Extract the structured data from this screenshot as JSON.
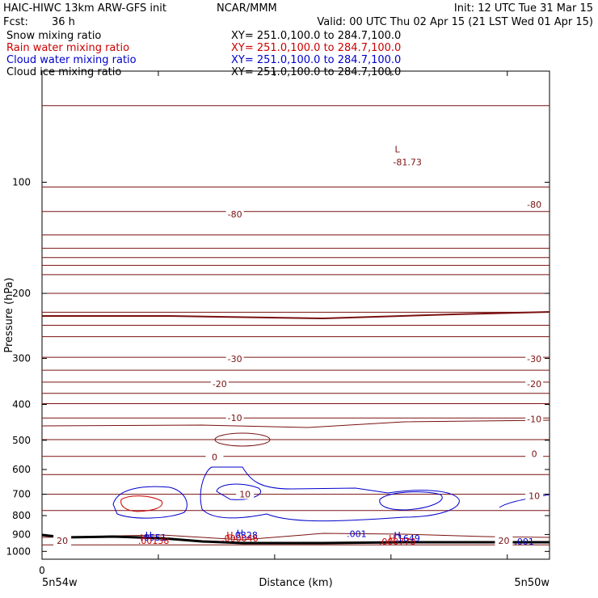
{
  "header": {
    "model": "HAIC-HIWC 13km ARW-GFS init",
    "org": "NCAR/MMM",
    "init": "Init: 12 UTC Tue 31 Mar 15",
    "fcst_label": "Fcst:",
    "fcst_value": "36 h",
    "valid": "Valid: 00 UTC Thu 02 Apr 15 (21 LST Wed 01 Apr 15)"
  },
  "legend": [
    {
      "name": "Snow mixing ratio",
      "xy": "XY= 251.0,100.0 to 284.7,100.0",
      "color": "#000000"
    },
    {
      "name": "Rain water mixing ratio",
      "xy": "XY= 251.0,100.0 to 284.7,100.0",
      "color": "#cc0000"
    },
    {
      "name": "Cloud water mixing ratio",
      "xy": "XY= 251.0,100.0 to 284.7,100.0",
      "color": "#0000cc"
    },
    {
      "name": "Cloud ice mixing ratio",
      "xy": "XY= 251.0,100.0 to 284.7,100.0",
      "color": "#000000"
    }
  ],
  "chart_data": {
    "type": "line",
    "xlabel": "Distance (km)",
    "ylabel": "Pressure (hPa)",
    "x_tick_labels": [
      "0"
    ],
    "x_end_labels": [
      "5n54w",
      "5n50w"
    ],
    "y_ticks": [
      100,
      200,
      300,
      400,
      500,
      600,
      700,
      800,
      900,
      1000
    ],
    "ylim": [
      1050,
      50
    ],
    "y_scale": "log",
    "grid": false,
    "colors": {
      "temperature": "#7a1010",
      "cloud_water": "#0000cc",
      "rain_water": "#cc0000",
      "terrain": "#000000"
    },
    "temperature_contour_labels": [
      {
        "text": "-80",
        "x": 0.38,
        "p": 122
      },
      {
        "text": "-80",
        "x": 0.97,
        "p": 115
      },
      {
        "text": "-30",
        "x": 0.38,
        "p": 301
      },
      {
        "text": "-30",
        "x": 0.97,
        "p": 301
      },
      {
        "text": "-20",
        "x": 0.35,
        "p": 352
      },
      {
        "text": "-20",
        "x": 0.97,
        "p": 352
      },
      {
        "text": "-10",
        "x": 0.38,
        "p": 435
      },
      {
        "text": "-10",
        "x": 0.97,
        "p": 438
      },
      {
        "text": "0",
        "x": 0.34,
        "p": 555
      },
      {
        "text": "0",
        "x": 0.97,
        "p": 544
      },
      {
        "text": "10",
        "x": 0.4,
        "p": 700
      },
      {
        "text": "10",
        "x": 0.97,
        "p": 706
      },
      {
        "text": "20",
        "x": 0.04,
        "p": 935
      },
      {
        "text": "20",
        "x": 0.91,
        "p": 935
      }
    ],
    "temperature_isobars": [
      62,
      103,
      120,
      139,
      151,
      160,
      168,
      178,
      200,
      225,
      244,
      262,
      298,
      323,
      348,
      373,
      398,
      435,
      498,
      553,
      619,
      700,
      775,
      960
    ],
    "extreme_labels": [
      {
        "text": "L",
        "x": 0.7,
        "p": 83,
        "color": "#7a1010"
      },
      {
        "text": "-81.73",
        "x": 0.72,
        "p": 90,
        "color": "#7a1010"
      },
      {
        "text": "H",
        "x": 0.21,
        "p": 920,
        "color": "#0000cc"
      },
      {
        "text": "H",
        "x": 0.2,
        "p": 935,
        "color": "#cc0000"
      },
      {
        "text": ".0551",
        "x": 0.22,
        "p": 935,
        "color": "#0000cc"
      },
      {
        "text": ".00138",
        "x": 0.22,
        "p": 955,
        "color": "#cc0000"
      },
      {
        "text": "H",
        "x": 0.39,
        "p": 910,
        "color": "#0000cc"
      },
      {
        "text": "H",
        "x": 0.37,
        "p": 922,
        "color": "#cc0000"
      },
      {
        "text": ".0328",
        "x": 0.4,
        "p": 922,
        "color": "#0000cc"
      },
      {
        "text": ".000046",
        "x": 0.39,
        "p": 940,
        "color": "#cc0000"
      },
      {
        "text": ".001",
        "x": 0.62,
        "p": 915,
        "color": "#0000cc"
      },
      {
        "text": "H",
        "x": 0.7,
        "p": 922,
        "color": "#0000cc"
      },
      {
        "text": "H",
        "x": 0.69,
        "p": 940,
        "color": "#cc0000"
      },
      {
        "text": ".1649",
        "x": 0.72,
        "p": 940,
        "color": "#0000cc"
      },
      {
        "text": ".000778",
        "x": 0.7,
        "p": 958,
        "color": "#cc0000"
      },
      {
        "text": ".001",
        "x": 0.95,
        "p": 960,
        "color": "#0000cc"
      }
    ]
  }
}
